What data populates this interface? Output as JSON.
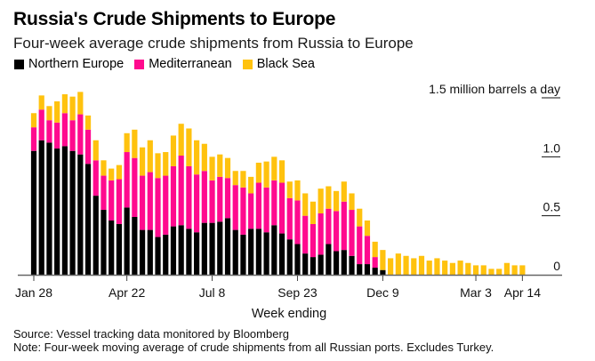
{
  "colors": {
    "northern_europe": "#000000",
    "mediterranean": "#FF0A8E",
    "black_sea": "#FFC20E",
    "axis": "#555555"
  },
  "footer": {
    "source": "Source: Vessel tracking data monitored by Bloomberg",
    "note": "Note: Four-week moving average of crude shipments from all Russian ports. Excludes Turkey."
  },
  "chart_data": {
    "type": "bar",
    "stacked": true,
    "title": "Russia's Crude Shipments to Europe",
    "subtitle": "Four-week average crude shipments from Russia to Europe",
    "xlabel": "Week ending",
    "ylabel": "1.5 million barrels a day",
    "ylim": [
      0,
      1.5
    ],
    "yticks": [
      {
        "value": 0,
        "label": "0"
      },
      {
        "value": 0.5,
        "label": "0.5"
      },
      {
        "value": 1.0,
        "label": "1.0"
      },
      {
        "value": 1.5,
        "label": "1.5 million barrels a day"
      }
    ],
    "xticks": [
      {
        "index": 0,
        "label": "Jan 28"
      },
      {
        "index": 12,
        "label": "Apr 22"
      },
      {
        "index": 23,
        "label": "Jul 8"
      },
      {
        "index": 34,
        "label": "Sep 23"
      },
      {
        "index": 45,
        "label": "Dec 9"
      },
      {
        "index": 57,
        "label": "Mar 3"
      },
      {
        "index": 63,
        "label": "Apr 14"
      }
    ],
    "legend_position": "top-left",
    "grid": false,
    "series": [
      {
        "name": "Northern Europe",
        "color_key": "northern_europe",
        "values": [
          1.05,
          1.14,
          1.12,
          1.07,
          1.09,
          1.05,
          1.02,
          0.94,
          0.67,
          0.55,
          0.46,
          0.43,
          0.57,
          0.49,
          0.38,
          0.38,
          0.32,
          0.34,
          0.41,
          0.42,
          0.39,
          0.36,
          0.44,
          0.44,
          0.45,
          0.48,
          0.38,
          0.34,
          0.39,
          0.39,
          0.36,
          0.42,
          0.35,
          0.3,
          0.26,
          0.18,
          0.15,
          0.17,
          0.26,
          0.2,
          0.21,
          0.16,
          0.09,
          0.09,
          0.06,
          0.04,
          0,
          0,
          0,
          0,
          0,
          0,
          0,
          0,
          0,
          0,
          0,
          0,
          0,
          0,
          0,
          0,
          0,
          0
        ]
      },
      {
        "name": "Mediterranean",
        "color_key": "mediterranean",
        "values": [
          0.2,
          0.26,
          0.19,
          0.22,
          0.28,
          0.26,
          0.34,
          0.29,
          0.3,
          0.29,
          0.34,
          0.38,
          0.47,
          0.5,
          0.46,
          0.49,
          0.5,
          0.5,
          0.51,
          0.59,
          0.53,
          0.49,
          0.44,
          0.36,
          0.38,
          0.34,
          0.38,
          0.4,
          0.3,
          0.39,
          0.38,
          0.38,
          0.43,
          0.35,
          0.37,
          0.32,
          0.28,
          0.35,
          0.3,
          0.34,
          0.41,
          0.39,
          0.32,
          0.24,
          0.09,
          0,
          0,
          0,
          0,
          0,
          0,
          0,
          0,
          0,
          0,
          0,
          0,
          0,
          0,
          0,
          0,
          0,
          0,
          0
        ]
      },
      {
        "name": "Black Sea",
        "color_key": "black_sea",
        "values": [
          0.12,
          0.12,
          0.12,
          0.18,
          0.16,
          0.2,
          0.19,
          0.12,
          0.17,
          0.13,
          0.1,
          0.12,
          0.16,
          0.24,
          0.24,
          0.27,
          0.21,
          0.2,
          0.26,
          0.27,
          0.32,
          0.29,
          0.23,
          0.2,
          0.19,
          0.17,
          0.12,
          0.14,
          0.14,
          0.17,
          0.22,
          0.2,
          0.19,
          0.14,
          0.17,
          0.19,
          0.19,
          0.21,
          0.19,
          0.17,
          0.17,
          0.14,
          0.15,
          0.13,
          0.13,
          0.17,
          0.14,
          0.18,
          0.16,
          0.14,
          0.16,
          0.12,
          0.14,
          0.12,
          0.1,
          0.12,
          0.1,
          0.08,
          0.08,
          0.05,
          0.05,
          0.1,
          0.08,
          0.08
        ]
      }
    ]
  }
}
